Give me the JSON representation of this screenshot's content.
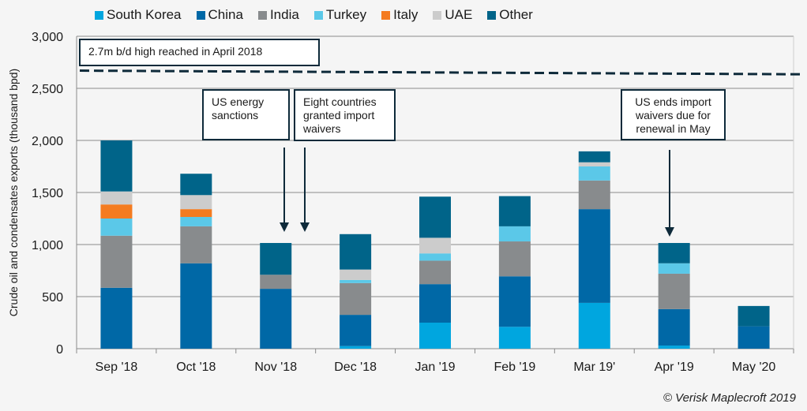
{
  "chart_data": {
    "type": "bar",
    "stacked": true,
    "ylabel": "Crude oil and condensates exports (thousand bpd)",
    "ylim": [
      0,
      3000
    ],
    "yticks": [
      "0",
      "500",
      "1,000",
      "1,500",
      "2,000",
      "2,500",
      "3,000"
    ],
    "ytick_values": [
      0,
      500,
      1000,
      1500,
      2000,
      2500,
      3000
    ],
    "grid": true,
    "legend_placement": "top",
    "categories": [
      "Sep '18",
      "Oct '18",
      "Nov '18",
      "Dec '18",
      "Jan '19",
      "Feb '19",
      "Mar 19'",
      "Apr '19",
      "May '20"
    ],
    "series": [
      {
        "name": "South Korea",
        "color": "#00a6df",
        "values": [
          0,
          0,
          0,
          25,
          250,
          210,
          440,
          30,
          0
        ]
      },
      {
        "name": "China",
        "color": "#0068a6",
        "values": [
          585,
          820,
          575,
          300,
          370,
          485,
          900,
          350,
          215
        ]
      },
      {
        "name": "India",
        "color": "#888b8d",
        "values": [
          500,
          355,
          135,
          305,
          225,
          335,
          275,
          340,
          0
        ]
      },
      {
        "name": "Turkey",
        "color": "#5bc8e8",
        "values": [
          165,
          90,
          0,
          30,
          70,
          145,
          135,
          100,
          0
        ]
      },
      {
        "name": "Italy",
        "color": "#f47b20",
        "values": [
          135,
          75,
          0,
          0,
          0,
          0,
          0,
          0,
          0
        ]
      },
      {
        "name": "UAE",
        "color": "#cccccc",
        "values": [
          125,
          135,
          0,
          100,
          150,
          0,
          40,
          0,
          0
        ]
      },
      {
        "name": "Other",
        "color": "#006489",
        "values": [
          490,
          205,
          305,
          340,
          395,
          290,
          105,
          195,
          195
        ]
      }
    ],
    "reference_line": {
      "label": "2.7m b/d high reached in April 2018",
      "value": 2650,
      "style": "dashed",
      "color": "#0e2a3a"
    },
    "annotations": [
      {
        "text": "US energy sanctions",
        "arrow_to": "Nov '18"
      },
      {
        "text": "Eight countries granted import waivers",
        "arrow_to": "Nov '18"
      },
      {
        "text": "US ends import waivers due for renewal in May",
        "arrow_to": "Apr '19"
      }
    ]
  },
  "footer": "© Verisk Maplecroft 2019"
}
